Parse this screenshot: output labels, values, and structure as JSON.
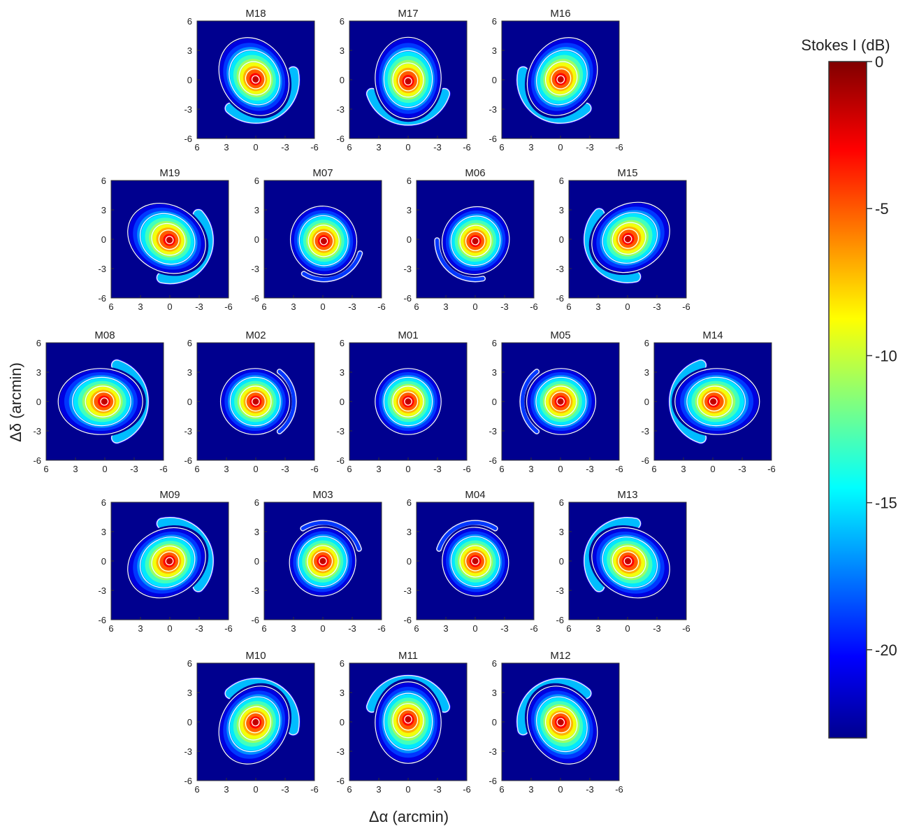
{
  "chart_data": {
    "type": "heatmap",
    "description_free": true,
    "xlabel": "Δα (arcmin)",
    "ylabel": "Δδ (arcmin)",
    "colorbar": {
      "label": "Stokes I (dB)",
      "range": [
        -23,
        0
      ],
      "ticks": [
        0,
        -5,
        -10,
        -15,
        -20
      ],
      "colormap": "jet",
      "colors": [
        "#00008f",
        "#0000ff",
        "#00ffff",
        "#ffff00",
        "#ff0000",
        "#800000"
      ]
    },
    "axes": {
      "xlim": [
        6,
        -6
      ],
      "ylim": [
        -6,
        6
      ],
      "xticks": [
        6,
        3,
        0,
        -3,
        -6
      ],
      "yticks": [
        -6,
        -3,
        0,
        3,
        6
      ]
    },
    "contour_color": "#ffffff",
    "panels": [
      {
        "name": "M18",
        "row": 0,
        "col": 0,
        "main_beam_offset": [
          0.0,
          0.0
        ],
        "sidelobe_direction_deg": 300,
        "sidelobe_level_db": -14,
        "elongation": 1.25
      },
      {
        "name": "M17",
        "row": 0,
        "col": 1,
        "main_beam_offset": [
          0.0,
          -0.2
        ],
        "sidelobe_direction_deg": 270,
        "sidelobe_level_db": -14,
        "elongation": 1.25
      },
      {
        "name": "M16",
        "row": 0,
        "col": 2,
        "main_beam_offset": [
          0.0,
          0.0
        ],
        "sidelobe_direction_deg": 240,
        "sidelobe_level_db": -14,
        "elongation": 1.25
      },
      {
        "name": "M19",
        "row": 1,
        "col": 0,
        "main_beam_offset": [
          0.0,
          -0.1
        ],
        "sidelobe_direction_deg": 330,
        "sidelobe_level_db": -14,
        "elongation": 1.25
      },
      {
        "name": "M07",
        "row": 1,
        "col": 1,
        "main_beam_offset": [
          -0.1,
          -0.2
        ],
        "sidelobe_direction_deg": 290,
        "sidelobe_level_db": -18,
        "elongation": 1.05
      },
      {
        "name": "M06",
        "row": 1,
        "col": 2,
        "main_beam_offset": [
          0.0,
          -0.2
        ],
        "sidelobe_direction_deg": 230,
        "sidelobe_level_db": -18,
        "elongation": 1.05
      },
      {
        "name": "M15",
        "row": 1,
        "col": 3,
        "main_beam_offset": [
          0.0,
          0.0
        ],
        "sidelobe_direction_deg": 210,
        "sidelobe_level_db": -14,
        "elongation": 1.25
      },
      {
        "name": "M08",
        "row": 2,
        "col": 0,
        "main_beam_offset": [
          0.0,
          0.0
        ],
        "sidelobe_direction_deg": 0,
        "sidelobe_level_db": -14,
        "elongation": 1.3
      },
      {
        "name": "M02",
        "row": 2,
        "col": 1,
        "main_beam_offset": [
          0.0,
          0.0
        ],
        "sidelobe_direction_deg": 0,
        "sidelobe_level_db": -18,
        "elongation": 1.05
      },
      {
        "name": "M01",
        "row": 2,
        "col": 2,
        "main_beam_offset": [
          0.0,
          0.0
        ],
        "sidelobe_direction_deg": null,
        "sidelobe_level_db": null,
        "elongation": 1.0
      },
      {
        "name": "M05",
        "row": 2,
        "col": 3,
        "main_beam_offset": [
          0.0,
          0.0
        ],
        "sidelobe_direction_deg": 180,
        "sidelobe_level_db": -18,
        "elongation": 1.05
      },
      {
        "name": "M14",
        "row": 2,
        "col": 4,
        "main_beam_offset": [
          0.0,
          0.0
        ],
        "sidelobe_direction_deg": 180,
        "sidelobe_level_db": -14,
        "elongation": 1.3
      },
      {
        "name": "M09",
        "row": 3,
        "col": 0,
        "main_beam_offset": [
          0.0,
          0.0
        ],
        "sidelobe_direction_deg": 30,
        "sidelobe_level_db": -14,
        "elongation": 1.25
      },
      {
        "name": "M03",
        "row": 3,
        "col": 1,
        "main_beam_offset": [
          0.0,
          0.0
        ],
        "sidelobe_direction_deg": 70,
        "sidelobe_level_db": -18,
        "elongation": 1.05
      },
      {
        "name": "M04",
        "row": 3,
        "col": 2,
        "main_beam_offset": [
          0.0,
          0.0
        ],
        "sidelobe_direction_deg": 110,
        "sidelobe_level_db": -18,
        "elongation": 1.05
      },
      {
        "name": "M13",
        "row": 3,
        "col": 3,
        "main_beam_offset": [
          0.0,
          0.0
        ],
        "sidelobe_direction_deg": 150,
        "sidelobe_level_db": -14,
        "elongation": 1.25
      },
      {
        "name": "M10",
        "row": 4,
        "col": 0,
        "main_beam_offset": [
          0.0,
          0.0
        ],
        "sidelobe_direction_deg": 60,
        "sidelobe_level_db": -14,
        "elongation": 1.25
      },
      {
        "name": "M11",
        "row": 4,
        "col": 1,
        "main_beam_offset": [
          0.0,
          0.3
        ],
        "sidelobe_direction_deg": 90,
        "sidelobe_level_db": -14,
        "elongation": 1.25
      },
      {
        "name": "M12",
        "row": 4,
        "col": 2,
        "main_beam_offset": [
          0.0,
          0.0
        ],
        "sidelobe_direction_deg": 120,
        "sidelobe_level_db": -14,
        "elongation": 1.25
      }
    ]
  }
}
